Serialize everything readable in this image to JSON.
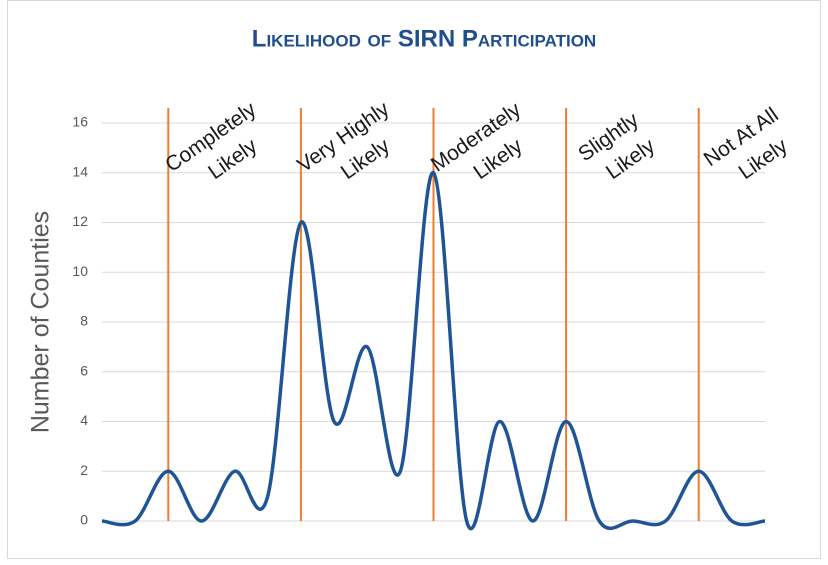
{
  "chart_data": {
    "type": "line",
    "title": "Likelihood of SIRN Participation",
    "y_label": "Number of Counties",
    "categories": [
      null,
      null,
      null,
      null,
      null,
      null,
      null,
      null,
      null,
      null,
      null,
      null,
      null,
      null,
      null,
      null,
      null,
      null,
      null,
      null,
      null
    ],
    "series": [
      {
        "name": null,
        "color": "#1f5597",
        "values": [
          0,
          0,
          2,
          0,
          2,
          1,
          12,
          4,
          7,
          2,
          14,
          0,
          4,
          0,
          4,
          0,
          0,
          0,
          2,
          0,
          0
        ]
      }
    ],
    "ylim": [
      0,
      16
    ],
    "yticks": [
      0,
      2,
      4,
      6,
      8,
      10,
      12,
      14,
      16
    ],
    "grid": true,
    "smooth": true,
    "annotations": [
      {
        "lines": [
          "Completely",
          "Likely"
        ],
        "at": 2,
        "color": "#ed7d31"
      },
      {
        "lines": [
          "Very Highly",
          "Likely"
        ],
        "at": 6,
        "color": "#ed7d31"
      },
      {
        "lines": [
          "Moderately",
          "Likely"
        ],
        "at": 10,
        "color": "#ed7d31"
      },
      {
        "lines": [
          "Slightly",
          "Likely"
        ],
        "at": 14,
        "color": "#ed7d31"
      },
      {
        "lines": [
          "Not At All",
          "Likely"
        ],
        "at": 18,
        "color": "#ed7d31"
      }
    ]
  }
}
